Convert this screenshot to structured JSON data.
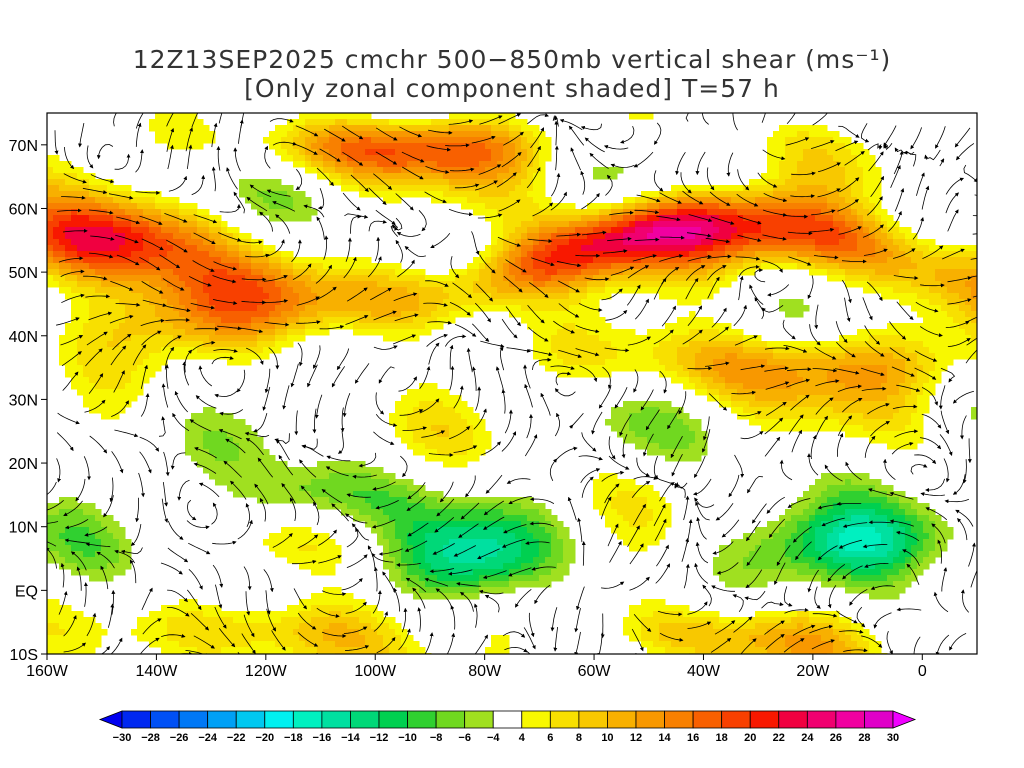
{
  "title": {
    "line1": "12Z13SEP2025 cmchr 500−850mb vertical shear (ms⁻¹)",
    "line2": "[Only zonal component shaded] T=57 h"
  },
  "axes": {
    "x_ticks": [
      "160W",
      "140W",
      "120W",
      "100W",
      "80W",
      "60W",
      "40W",
      "20W",
      "0"
    ],
    "x_values": [
      -160,
      -140,
      -120,
      -100,
      -80,
      -60,
      -40,
      -20,
      0
    ],
    "y_ticks": [
      "70N",
      "60N",
      "50N",
      "40N",
      "30N",
      "20N",
      "10N",
      "EQ",
      "10S"
    ],
    "y_values": [
      70,
      60,
      50,
      40,
      30,
      20,
      10,
      0,
      -10
    ],
    "lon_range": [
      -160,
      10
    ],
    "lat_range": [
      -10,
      75
    ]
  },
  "colorbar": {
    "labels": [
      "-30",
      "-28",
      "-26",
      "-24",
      "-22",
      "-20",
      "-18",
      "-16",
      "-14",
      "-12",
      "-10",
      "-8",
      "-6",
      "-4",
      "4",
      "6",
      "8",
      "10",
      "12",
      "14",
      "16",
      "18",
      "20",
      "22",
      "24",
      "26",
      "28",
      "30"
    ],
    "colors": [
      "#0028f0",
      "#0050f5",
      "#0078f5",
      "#00a0f5",
      "#00c8f0",
      "#00f0f0",
      "#00f0c0",
      "#00e0a0",
      "#00d878",
      "#00d050",
      "#30d030",
      "#70d820",
      "#a0e020",
      "#ffffff",
      "#f8f800",
      "#f8e000",
      "#f8c800",
      "#f8b000",
      "#f89800",
      "#f88000",
      "#f86000",
      "#f84000",
      "#f81800",
      "#f00040",
      "#f00070",
      "#f000a0",
      "#e000c8"
    ],
    "under_color": "#0000f0",
    "over_color": "#f000ff"
  },
  "chart_data": {
    "type": "heatmap",
    "variable": "500-850mb vertical shear, zonal component shaded",
    "units": "ms-1",
    "xlim": [
      -160,
      10
    ],
    "ylim": [
      -10,
      75
    ],
    "levels": [
      -30,
      -28,
      -26,
      -24,
      -22,
      -20,
      -18,
      -16,
      -14,
      -12,
      -10,
      -8,
      -6,
      -4,
      4,
      6,
      8,
      10,
      12,
      14,
      16,
      18,
      20,
      22,
      24,
      26,
      28,
      30
    ]
  }
}
